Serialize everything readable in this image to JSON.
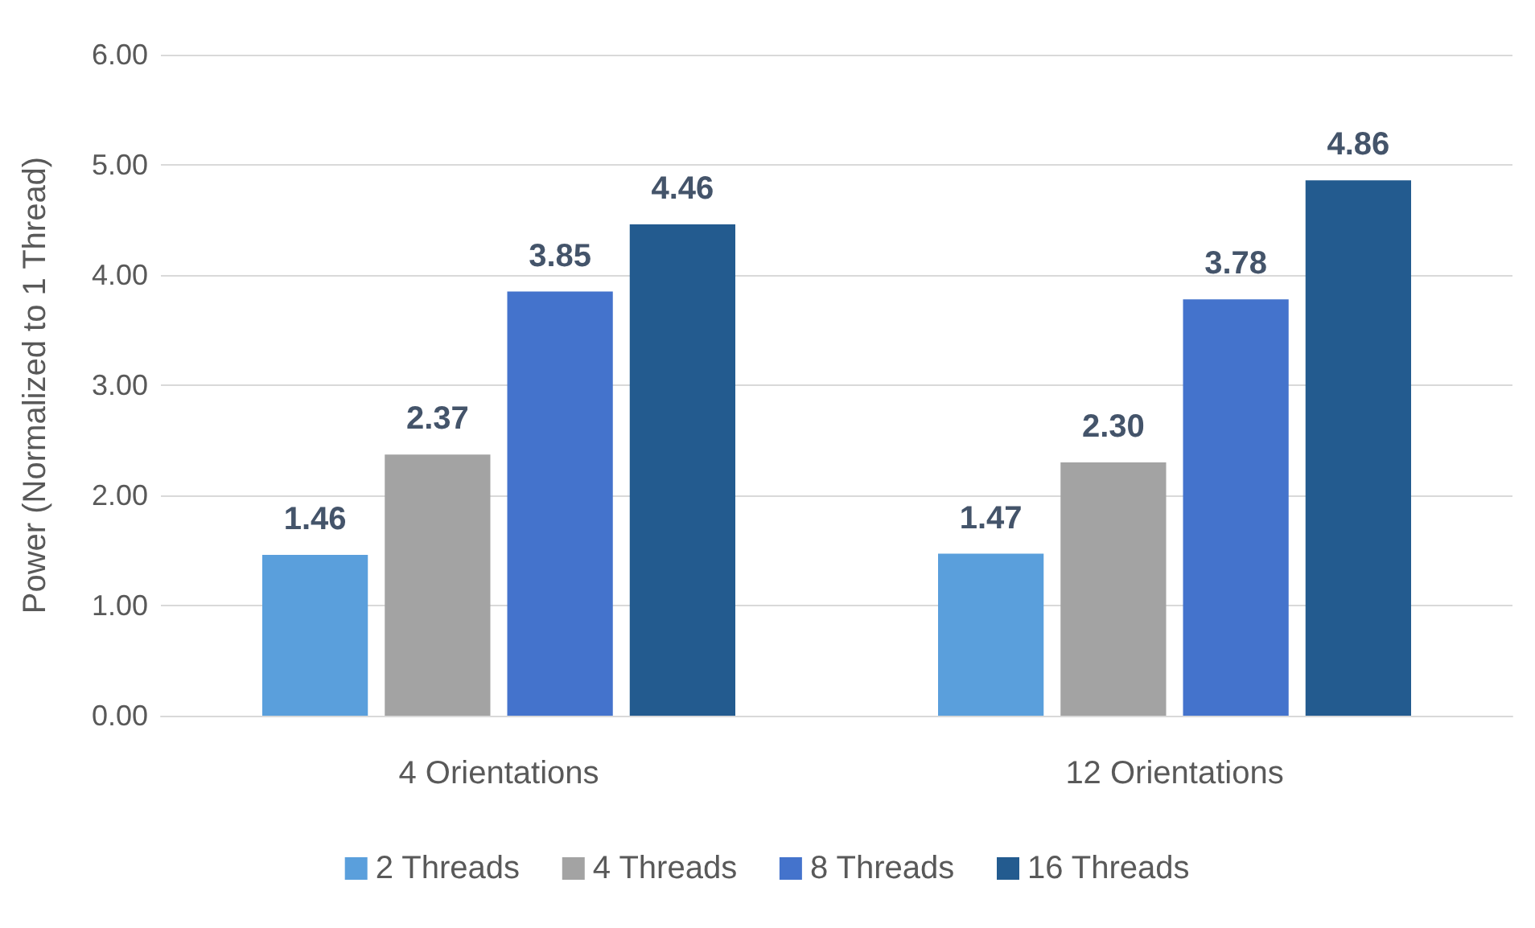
{
  "chart_data": {
    "type": "bar",
    "ylabel": "Power (Normalized to 1 Thread)",
    "categories": [
      "4 Orientations",
      "12 Orientations"
    ],
    "series": [
      {
        "name": "2 Threads",
        "color": "#5a9fdc",
        "values": [
          1.46,
          1.47
        ],
        "value_labels": [
          "1.46",
          "1.47"
        ]
      },
      {
        "name": "4 Threads",
        "color": "#a3a3a3",
        "values": [
          2.37,
          2.3
        ],
        "value_labels": [
          "2.37",
          "2.30"
        ]
      },
      {
        "name": "8 Threads",
        "color": "#4473cc",
        "values": [
          3.85,
          3.78
        ],
        "value_labels": [
          "3.85",
          "3.78"
        ]
      },
      {
        "name": "16 Threads",
        "color": "#235b8f",
        "values": [
          4.46,
          4.86
        ],
        "value_labels": [
          "4.46",
          "4.86"
        ]
      }
    ],
    "ylim": [
      0,
      6
    ],
    "yticks": [
      {
        "value": 0,
        "label": "0.00"
      },
      {
        "value": 1,
        "label": "1.00"
      },
      {
        "value": 2,
        "label": "2.00"
      },
      {
        "value": 3,
        "label": "3.00"
      },
      {
        "value": 4,
        "label": "4.00"
      },
      {
        "value": 5,
        "label": "5.00"
      },
      {
        "value": 6,
        "label": "6.00"
      }
    ],
    "grid": "y",
    "legend": "bottom"
  }
}
